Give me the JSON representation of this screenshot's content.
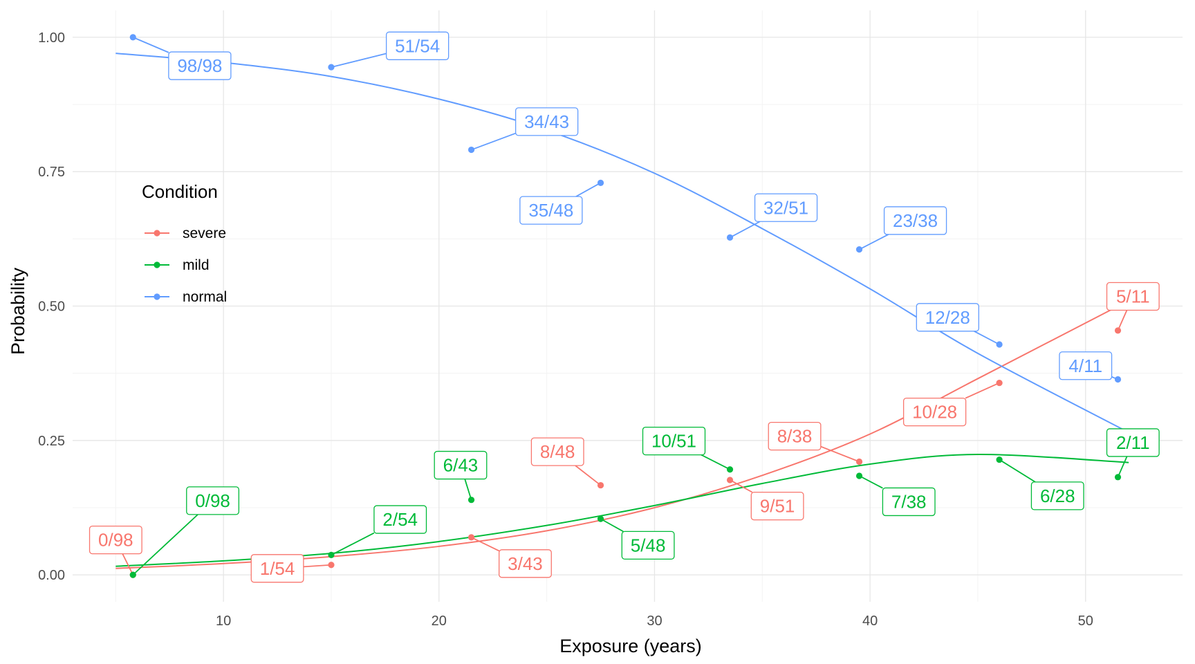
{
  "chart_data": {
    "type": "scatter",
    "title": "",
    "xlabel": "Exposure (years)",
    "ylabel": "Probability",
    "xlim": [
      3,
      54.5
    ],
    "ylim": [
      -0.05,
      1.05
    ],
    "x_ticks": [
      10,
      20,
      30,
      40,
      50
    ],
    "y_ticks": [
      0,
      0.25,
      0.5,
      0.75,
      1
    ],
    "y_tick_labels": [
      "0.00",
      "0.25",
      "0.50",
      "0.75",
      "1.00"
    ],
    "grid": true,
    "legend": {
      "title": "Condition",
      "position": "left-middle"
    },
    "series": [
      {
        "name": "severe",
        "color": "#F8766D",
        "x": [
          5.8,
          15.0,
          21.5,
          27.5,
          33.5,
          39.5,
          46.0,
          51.5
        ],
        "y": [
          0.0,
          0.0185,
          0.0698,
          0.1667,
          0.1765,
          0.2105,
          0.3571,
          0.4545
        ],
        "labels": [
          "0/98",
          "1/54",
          "3/43",
          "8/48",
          "9/51",
          "8/38",
          "10/28",
          "5/11"
        ],
        "label_pos": [
          [
            5.0,
            0.065
          ],
          [
            12.5,
            0.012
          ],
          [
            24.0,
            0.021
          ],
          [
            25.5,
            0.229
          ],
          [
            35.7,
            0.128
          ],
          [
            36.5,
            0.258
          ],
          [
            43.0,
            0.303
          ],
          [
            52.2,
            0.518
          ]
        ],
        "fit_x": [
          5,
          10,
          15,
          20,
          25,
          30,
          35,
          40,
          45,
          52
        ],
        "fit_y": [
          0.012,
          0.021,
          0.034,
          0.053,
          0.082,
          0.125,
          0.185,
          0.262,
          0.365,
          0.51
        ]
      },
      {
        "name": "mild",
        "color": "#00BA38",
        "x": [
          5.8,
          15.0,
          21.5,
          27.5,
          33.5,
          39.5,
          46.0,
          51.5
        ],
        "y": [
          0.0,
          0.037,
          0.1395,
          0.1042,
          0.1961,
          0.1842,
          0.2143,
          0.1818
        ],
        "labels": [
          "0/98",
          "2/54",
          "6/43",
          "5/48",
          "10/51",
          "7/38",
          "6/28",
          "2/11"
        ],
        "label_pos": [
          [
            9.5,
            0.138
          ],
          [
            18.2,
            0.103
          ],
          [
            21.0,
            0.204
          ],
          [
            29.7,
            0.055
          ],
          [
            30.9,
            0.249
          ],
          [
            41.8,
            0.136
          ],
          [
            48.7,
            0.147
          ],
          [
            52.2,
            0.246
          ]
        ],
        "fit_x": [
          5,
          10,
          15,
          20,
          25,
          30,
          35,
          40,
          45,
          52
        ],
        "fit_y": [
          0.016,
          0.026,
          0.04,
          0.062,
          0.092,
          0.129,
          0.17,
          0.206,
          0.224,
          0.209
        ]
      },
      {
        "name": "normal",
        "color": "#619CFF",
        "x": [
          5.8,
          15.0,
          21.5,
          27.5,
          33.5,
          39.5,
          46.0,
          51.5
        ],
        "y": [
          1.0,
          0.9444,
          0.7907,
          0.7292,
          0.6275,
          0.6053,
          0.4286,
          0.3636
        ],
        "labels": [
          "98/98",
          "51/54",
          "34/43",
          "35/48",
          "32/51",
          "23/38",
          "12/28",
          "4/11"
        ],
        "label_pos": [
          [
            8.9,
            0.947
          ],
          [
            19.0,
            0.984
          ],
          [
            25.0,
            0.843
          ],
          [
            25.2,
            0.678
          ],
          [
            36.1,
            0.683
          ],
          [
            42.1,
            0.659
          ],
          [
            43.6,
            0.479
          ],
          [
            50.0,
            0.389
          ]
        ],
        "fit_x": [
          5,
          10,
          15,
          20,
          25,
          30,
          35,
          40,
          45,
          52
        ],
        "fit_y": [
          0.97,
          0.953,
          0.927,
          0.885,
          0.827,
          0.747,
          0.644,
          0.532,
          0.412,
          0.265
        ]
      }
    ]
  }
}
